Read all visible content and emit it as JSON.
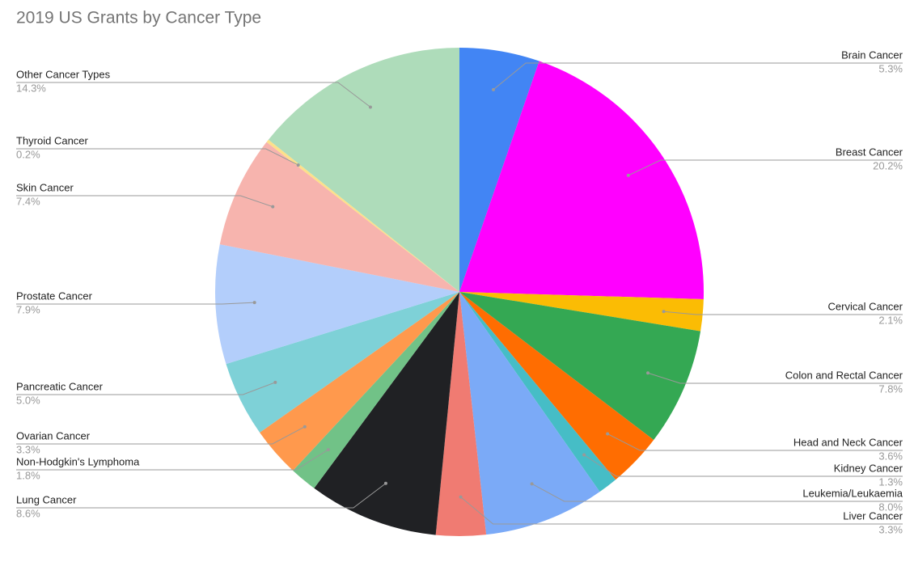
{
  "chart_data": {
    "type": "pie",
    "title": "2019 US Grants by Cancer Type",
    "categories": [
      "Brain Cancer",
      "Breast Cancer",
      "Cervical Cancer",
      "Colon and Rectal Cancer",
      "Head and Neck Cancer",
      "Kidney Cancer",
      "Leukemia/Leukaemia",
      "Liver Cancer",
      "Lung Cancer",
      "Non-Hodgkin's Lymphoma",
      "Ovarian Cancer",
      "Pancreatic Cancer",
      "Prostate Cancer",
      "Skin Cancer",
      "Thyroid Cancer",
      "Other Cancer Types"
    ],
    "values": [
      5.3,
      20.2,
      2.1,
      7.8,
      3.6,
      1.3,
      8.0,
      3.3,
      8.6,
      1.8,
      3.3,
      5.0,
      7.9,
      7.4,
      0.2,
      14.3
    ],
    "value_labels": [
      "5.3%",
      "20.2%",
      "2.1%",
      "7.8%",
      "3.6%",
      "1.3%",
      "8.0%",
      "3.3%",
      "8.6%",
      "1.8%",
      "3.3%",
      "5.0%",
      "7.9%",
      "7.4%",
      "0.2%",
      "14.3%"
    ],
    "colors": [
      "#4285f4",
      "#ff00ff",
      "#fbbc04",
      "#34a853",
      "#ff6d01",
      "#46bdc6",
      "#7baaf7",
      "#f07b72",
      "#202124",
      "#71c287",
      "#ff994d",
      "#7ed1d7",
      "#b3cefb",
      "#f7b4ae",
      "#fde08a",
      "#aedcba"
    ]
  }
}
